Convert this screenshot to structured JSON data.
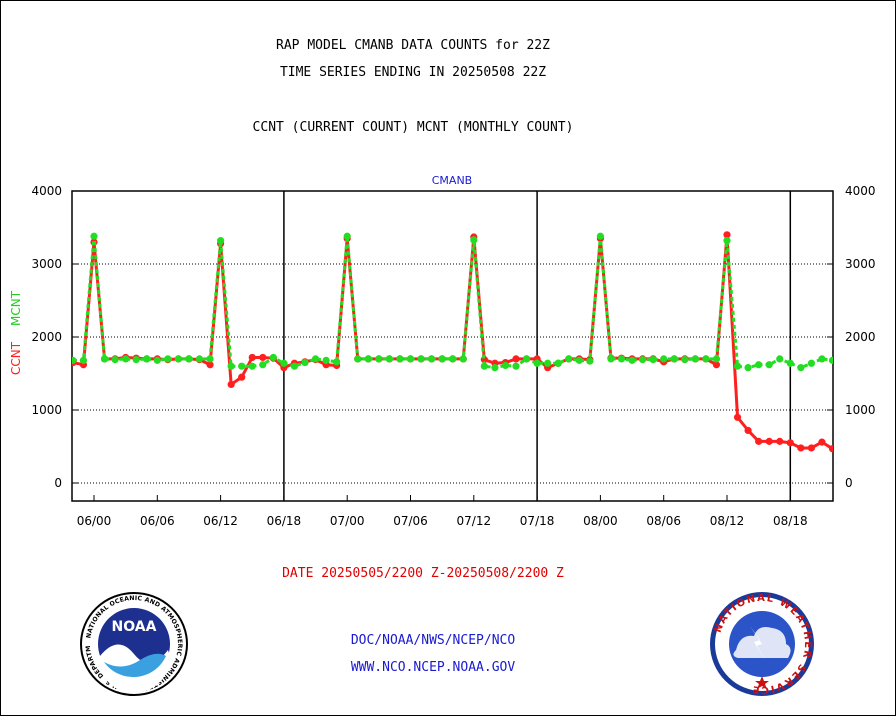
{
  "header": {
    "title_line1": "RAP MODEL CMANB DATA COUNTS for 22Z",
    "title_line2": "TIME SERIES ENDING IN 20250508 22Z",
    "subtitle": "CCNT (CURRENT COUNT) MCNT (MONTHLY COUNT)"
  },
  "footer": {
    "date_range": "DATE 20250505/2200 Z-20250508/2200 Z",
    "org_path": "DOC/NOAA/NWS/NCEP/NCO",
    "website": "WWW.NCO.NCEP.NOAA.GOV"
  },
  "logos": {
    "noaa_text": "NOAA",
    "noaa_ring_text": "NATIONAL OCEANIC AND ATMOSPHERIC ADMINISTRATION · U.S. DEPARTMENT OF COMMERCE ·",
    "nws_ring_text": "NATIONAL WEATHER SERVICE"
  },
  "chart_data": {
    "type": "line",
    "title": "CMANB",
    "ylabel_left": "CCNT",
    "ylabel_right": "MCNT",
    "ylim": [
      -250,
      4000
    ],
    "y_ticks": [
      0,
      1000,
      2000,
      3000,
      4000
    ],
    "x_range": [
      0,
      72
    ],
    "x_tick_positions": [
      0,
      6,
      12,
      18,
      24,
      30,
      36,
      42,
      48,
      54,
      60,
      66
    ],
    "x_tick_labels": [
      "06/00",
      "06/06",
      "06/12",
      "06/18",
      "07/00",
      "07/06",
      "07/12",
      "07/18",
      "08/00",
      "08/06",
      "08/12",
      "08/18"
    ],
    "day_dividers": [
      18,
      42,
      66
    ],
    "grid": "horizontal dotted",
    "colors": {
      "ccnt": "#ff1f1f",
      "mcnt": "#22dd22",
      "title": "#1a1ad0"
    },
    "series": [
      {
        "name": "CCNT",
        "x": [
          -2,
          -1,
          0,
          1,
          2,
          3,
          4,
          5,
          6,
          7,
          8,
          9,
          10,
          11,
          12,
          13,
          14,
          15,
          16,
          17,
          18,
          19,
          20,
          21,
          22,
          23,
          24,
          25,
          26,
          27,
          28,
          29,
          30,
          31,
          32,
          33,
          34,
          35,
          36,
          37,
          38,
          39,
          40,
          41,
          42,
          43,
          44,
          45,
          46,
          47,
          48,
          49,
          50,
          51,
          52,
          53,
          54,
          55,
          56,
          57,
          58,
          59,
          60,
          61,
          62,
          63,
          64,
          65,
          66,
          67,
          68,
          69,
          70,
          71
        ],
        "values": [
          1650,
          1620,
          3300,
          1700,
          1700,
          1720,
          1710,
          1700,
          1700,
          1690,
          1700,
          1700,
          1690,
          1620,
          3280,
          1350,
          1450,
          1720,
          1720,
          1710,
          1580,
          1640,
          1660,
          1690,
          1620,
          1610,
          3350,
          1700,
          1700,
          1700,
          1700,
          1700,
          1700,
          1700,
          1700,
          1700,
          1700,
          1700,
          3370,
          1690,
          1640,
          1650,
          1700,
          1700,
          1700,
          1580,
          1640,
          1700,
          1700,
          1690,
          3350,
          1710,
          1710,
          1700,
          1700,
          1700,
          1660,
          1700,
          1700,
          1700,
          1700,
          1620,
          3400,
          900,
          720,
          570,
          570,
          570,
          550,
          480,
          480,
          560,
          470,
          470
        ]
      },
      {
        "name": "MCNT",
        "x": [
          -2,
          -1,
          0,
          1,
          2,
          3,
          4,
          5,
          6,
          7,
          8,
          9,
          10,
          11,
          12,
          13,
          14,
          15,
          16,
          17,
          18,
          19,
          20,
          21,
          22,
          23,
          24,
          25,
          26,
          27,
          28,
          29,
          30,
          31,
          32,
          33,
          34,
          35,
          36,
          37,
          38,
          39,
          40,
          41,
          42,
          43,
          44,
          45,
          46,
          47,
          48,
          49,
          50,
          51,
          52,
          53,
          54,
          55,
          56,
          57,
          58,
          59,
          60,
          61,
          62,
          63,
          64,
          65,
          66,
          67,
          68,
          69,
          70,
          71
        ],
        "values": [
          1680,
          1680,
          3380,
          1700,
          1690,
          1700,
          1690,
          1700,
          1680,
          1700,
          1700,
          1700,
          1700,
          1700,
          3320,
          1600,
          1600,
          1600,
          1620,
          1720,
          1640,
          1600,
          1650,
          1700,
          1680,
          1660,
          3380,
          1700,
          1700,
          1700,
          1700,
          1700,
          1700,
          1700,
          1700,
          1700,
          1700,
          1700,
          3330,
          1600,
          1580,
          1610,
          1600,
          1700,
          1640,
          1640,
          1640,
          1700,
          1680,
          1670,
          3380,
          1700,
          1700,
          1680,
          1690,
          1690,
          1700,
          1700,
          1690,
          1700,
          1700,
          1700,
          3320,
          1600,
          1580,
          1620,
          1620,
          1700,
          1640,
          1580,
          1640,
          1700,
          1680,
          1680
        ]
      }
    ]
  }
}
